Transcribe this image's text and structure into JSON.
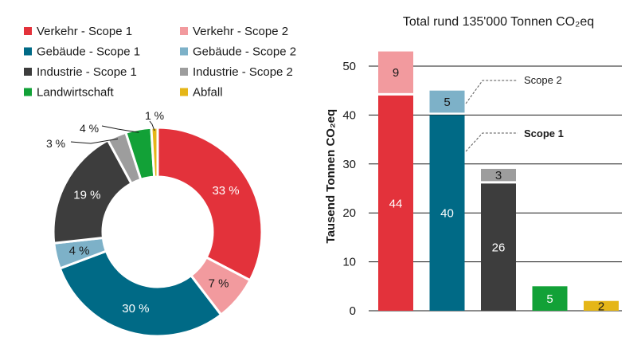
{
  "chart_data": [
    {
      "type": "pie",
      "variant": "donut",
      "legend": [
        {
          "key": "verkehr1",
          "label": "Verkehr - Scope 1",
          "color": "#e3323b"
        },
        {
          "key": "verkehr2",
          "label": "Verkehr - Scope 2",
          "color": "#f29a9e"
        },
        {
          "key": "gebaeude1",
          "label": "Gebäude - Scope 1",
          "color": "#006a86"
        },
        {
          "key": "gebaeude2",
          "label": "Gebäude - Scope 2",
          "color": "#7db1c8"
        },
        {
          "key": "industrie1",
          "label": "Industrie - Scope 1",
          "color": "#3d3d3d"
        },
        {
          "key": "industrie2",
          "label": "Industrie - Scope 2",
          "color": "#9d9d9d"
        },
        {
          "key": "landwirtschaft",
          "label": "Landwirtschaft",
          "color": "#12a137"
        },
        {
          "key": "abfall",
          "label": "Abfall",
          "color": "#e5b618"
        }
      ],
      "slices": [
        {
          "key": "verkehr1",
          "value": 33,
          "label": "33 %",
          "label_color": "#ffffff"
        },
        {
          "key": "verkehr2",
          "value": 7,
          "label": "7 %",
          "label_color": "#1a1a1a"
        },
        {
          "key": "gebaeude1",
          "value": 30,
          "label": "30 %",
          "label_color": "#ffffff"
        },
        {
          "key": "gebaeude2",
          "value": 4,
          "label": "4 %",
          "label_color": "#1a1a1a"
        },
        {
          "key": "industrie1",
          "value": 19,
          "label": "19 %",
          "label_color": "#ffffff"
        },
        {
          "key": "industrie2",
          "value": 3,
          "label": "3 %",
          "label_color": "#1a1a1a"
        },
        {
          "key": "landwirtschaft",
          "value": 4,
          "label": "4 %",
          "label_color": "#1a1a1a"
        },
        {
          "key": "abfall",
          "value": 1,
          "label": "1 %",
          "label_color": "#1a1a1a"
        }
      ]
    },
    {
      "type": "bar",
      "stacked": true,
      "title": "Total rund 135'000 Tonnen CO₂eq",
      "ylabel": "Tausend Tonnen CO₂eq",
      "xlabel": "",
      "ylim": [
        0,
        55
      ],
      "yticks": [
        0,
        10,
        20,
        30,
        40,
        50
      ],
      "grid": true,
      "annotations": [
        "Scope 2",
        "Scope 1"
      ],
      "bars": [
        {
          "segments": [
            {
              "value": 44,
              "label": "44",
              "color": "#e3323b",
              "label_color": "#ffffff"
            },
            {
              "value": 9,
              "label": "9",
              "color": "#f29a9e",
              "label_color": "#1a1a1a"
            }
          ]
        },
        {
          "segments": [
            {
              "value": 40,
              "label": "40",
              "color": "#006a86",
              "label_color": "#ffffff"
            },
            {
              "value": 5,
              "label": "5",
              "color": "#7db1c8",
              "label_color": "#1a1a1a"
            }
          ]
        },
        {
          "segments": [
            {
              "value": 26,
              "label": "26",
              "color": "#3d3d3d",
              "label_color": "#ffffff"
            },
            {
              "value": 3,
              "label": "3",
              "color": "#9d9d9d",
              "label_color": "#1a1a1a"
            }
          ]
        },
        {
          "segments": [
            {
              "value": 5,
              "label": "5",
              "color": "#12a137",
              "label_color": "#ffffff"
            }
          ]
        },
        {
          "segments": [
            {
              "value": 2,
              "label": "2",
              "color": "#e5b618",
              "label_color": "#1a1a1a"
            }
          ]
        }
      ]
    }
  ]
}
